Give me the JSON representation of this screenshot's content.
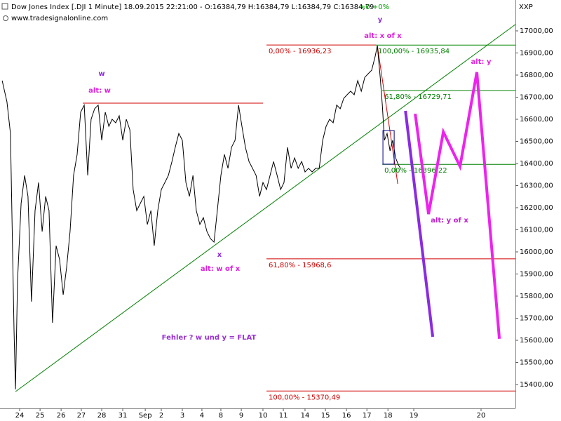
{
  "chart_data": {
    "type": "line",
    "title": "Dow Jones Index [.DJI  1 Minute] 18.09.2015 22:21:00 - O:16384,79 H:16384,79 L:16384,79 C:16384,79",
    "change": "+0 +0%",
    "change_color": "#00a000",
    "subtitle": "www.tradesignalonline.com",
    "y_axis_label": "XXP",
    "color": "#000000",
    "xlim": [
      -0.943,
      23.8
    ],
    "ylim": [
      15292.1,
      17139.7
    ],
    "grid": false,
    "xticks": [
      {
        "value": 0,
        "label": "24"
      },
      {
        "value": 0.98,
        "label": "25"
      },
      {
        "value": 1.99,
        "label": "26"
      },
      {
        "value": 2.96,
        "label": "27"
      },
      {
        "value": 3.94,
        "label": "28"
      },
      {
        "value": 4.95,
        "label": "31"
      },
      {
        "value": 6.03,
        "label": "Sep"
      },
      {
        "value": 6.8,
        "label": "2"
      },
      {
        "value": 7.81,
        "label": "3"
      },
      {
        "value": 8.75,
        "label": "4"
      },
      {
        "value": 9.66,
        "label": "8"
      },
      {
        "value": 10.64,
        "label": "9"
      },
      {
        "value": 11.68,
        "label": "10"
      },
      {
        "value": 12.66,
        "label": "11"
      },
      {
        "value": 13.7,
        "label": "14"
      },
      {
        "value": 14.68,
        "label": "15"
      },
      {
        "value": 15.69,
        "label": "16"
      },
      {
        "value": 16.67,
        "label": "17"
      },
      {
        "value": 17.68,
        "label": "18"
      },
      {
        "value": 18.92,
        "label": "19"
      },
      {
        "value": 22.15,
        "label": "20"
      }
    ],
    "yticks": [
      {
        "value": 15400,
        "label": "15400,00"
      },
      {
        "value": 15500,
        "label": "15500,00"
      },
      {
        "value": 15600,
        "label": "15600,00"
      },
      {
        "value": 15700,
        "label": "15700,00"
      },
      {
        "value": 15800,
        "label": "15800,00"
      },
      {
        "value": 15900,
        "label": "15900,00"
      },
      {
        "value": 16000,
        "label": "16000,00"
      },
      {
        "value": 16100,
        "label": "16100,00"
      },
      {
        "value": 16200,
        "label": "16200,00"
      },
      {
        "value": 16300,
        "label": "16300,00"
      },
      {
        "value": 16400,
        "label": "16400,00"
      },
      {
        "value": 16500,
        "label": "16500,00"
      },
      {
        "value": 16600,
        "label": "16600,00"
      },
      {
        "value": 16700,
        "label": "16700,00"
      },
      {
        "value": 16800,
        "label": "16800,00"
      },
      {
        "value": 16900,
        "label": "16900,00"
      },
      {
        "value": 17000,
        "label": "17000,00"
      }
    ],
    "x": [
      -0.84,
      -0.61,
      -0.44,
      -0.27,
      -0.2,
      -0.1,
      0.07,
      0.24,
      0.4,
      0.57,
      0.74,
      0.91,
      1.08,
      1.25,
      1.41,
      1.58,
      1.75,
      1.92,
      2.09,
      2.26,
      2.42,
      2.59,
      2.76,
      2.93,
      3.1,
      3.27,
      3.43,
      3.6,
      3.77,
      3.94,
      4.11,
      4.28,
      4.44,
      4.61,
      4.78,
      4.95,
      5.12,
      5.29,
      5.45,
      5.62,
      5.79,
      5.96,
      6.13,
      6.3,
      6.46,
      6.63,
      6.8,
      6.97,
      7.14,
      7.31,
      7.47,
      7.64,
      7.81,
      7.98,
      8.15,
      8.32,
      8.48,
      8.65,
      8.82,
      8.99,
      9.16,
      9.33,
      9.49,
      9.66,
      9.83,
      10,
      10.17,
      10.34,
      10.51,
      10.67,
      10.84,
      11.01,
      11.18,
      11.35,
      11.52,
      11.68,
      11.85,
      12.02,
      12.19,
      12.36,
      12.53,
      12.69,
      12.86,
      13.03,
      13.2,
      13.37,
      13.54,
      13.7,
      13.87,
      14.04,
      14.21,
      14.38,
      14.55,
      14.71,
      14.88,
      15.05,
      15.22,
      15.39,
      15.56,
      15.72,
      15.89,
      16.06,
      16.23,
      16.4,
      16.57,
      16.73,
      16.9,
      17.07,
      17.17,
      17.31,
      17.41,
      17.51,
      17.64,
      17.78,
      17.91,
      18.05,
      18.18,
      18.28
    ],
    "values": [
      16775,
      16679,
      16536,
      15647,
      15378,
      15870,
      16219,
      16346,
      16251,
      15775,
      16187,
      16314,
      16092,
      16251,
      16187,
      15679,
      16028,
      15965,
      15806,
      15933,
      16092,
      16346,
      16441,
      16632,
      16664,
      16346,
      16600,
      16648,
      16664,
      16505,
      16632,
      16568,
      16600,
      16584,
      16616,
      16505,
      16600,
      16552,
      16282,
      16187,
      16219,
      16251,
      16124,
      16187,
      16028,
      16187,
      16282,
      16314,
      16346,
      16409,
      16473,
      16536,
      16505,
      16314,
      16251,
      16346,
      16187,
      16124,
      16155,
      16092,
      16060,
      16044,
      16187,
      16346,
      16441,
      16378,
      16473,
      16505,
      16664,
      16568,
      16473,
      16409,
      16378,
      16346,
      16251,
      16314,
      16282,
      16346,
      16409,
      16346,
      16282,
      16314,
      16473,
      16378,
      16425,
      16378,
      16409,
      16362,
      16378,
      16362,
      16378,
      16378,
      16505,
      16568,
      16600,
      16584,
      16664,
      16648,
      16695,
      16711,
      16727,
      16711,
      16775,
      16727,
      16790,
      16806,
      16822,
      16886,
      16933,
      16790,
      16664,
      16505,
      16536,
      16457,
      16505,
      16425,
      16394,
      16378
    ],
    "levels": [
      {
        "label": "0,00% - 16936,23",
        "value": 16936.23,
        "x": [
          11.85,
          17.1
        ],
        "color": "#d00000"
      },
      {
        "label": "100,00% - 16935,84",
        "value": 16935.84,
        "x": [
          17.1,
          23.8
        ],
        "color": "#008000"
      },
      {
        "label": "61,80% - 16729,71",
        "value": 16729.71,
        "x": [
          17.41,
          23.8
        ],
        "color": "#008000"
      },
      {
        "label": "0,00% - 16396,22",
        "value": 16396.22,
        "x": [
          17.41,
          23.8
        ],
        "color": "#008000"
      },
      {
        "label": "61,80% - 15968,6",
        "value": 15968.6,
        "x": [
          11.85,
          23.8
        ],
        "color": "#d00000"
      },
      {
        "label": "100,00% - 15370,49",
        "value": 15370.49,
        "x": [
          11.85,
          23.8
        ],
        "color": "#d00000"
      }
    ],
    "overlays": [
      {
        "color": "#d00000",
        "width": 1,
        "x": [
          3.03,
          11.68
        ],
        "values": [
          16673,
          16673
        ]
      },
      {
        "color": "#008000",
        "width": 1,
        "x": [
          -0.2,
          23.8
        ],
        "values": [
          15368,
          17029
        ]
      },
      {
        "color": "#d00000",
        "width": 1,
        "x": [
          17.17,
          18.15
        ],
        "values": [
          16933,
          16308
        ]
      },
      {
        "color": "#8a2be2",
        "width": 4,
        "x": [
          18.52,
          19.83
        ],
        "values": [
          16638,
          15616
        ]
      },
      {
        "color": "#ee22ee",
        "width": 4,
        "x": [
          18.99,
          19.63,
          20.34,
          21.14,
          21.95,
          23.03
        ],
        "values": [
          16625,
          16171,
          16543,
          16387,
          16813,
          15607
        ]
      }
    ],
    "box": {
      "x": [
        17.44,
        17.98
      ],
      "values": [
        16397,
        16549
      ],
      "color": "#000080"
    },
    "annotations": [
      {
        "text": "w",
        "color": "#8a2be2"
      },
      {
        "text": "alt: w",
        "color": "#e020e0"
      },
      {
        "text": "x",
        "color": "#8a2be2"
      },
      {
        "text": "alt: w of x",
        "color": "#e020e0"
      },
      {
        "text": "y",
        "color": "#8a2be2"
      },
      {
        "text": "alt: x of x",
        "color": "#e020e0"
      },
      {
        "text": "alt: y of x",
        "color": "#c020d0"
      },
      {
        "text": "alt: y",
        "color": "#e020e0"
      },
      {
        "text": "Fehler ? w und y  = FLAT",
        "color": "#9a30d0"
      }
    ]
  }
}
